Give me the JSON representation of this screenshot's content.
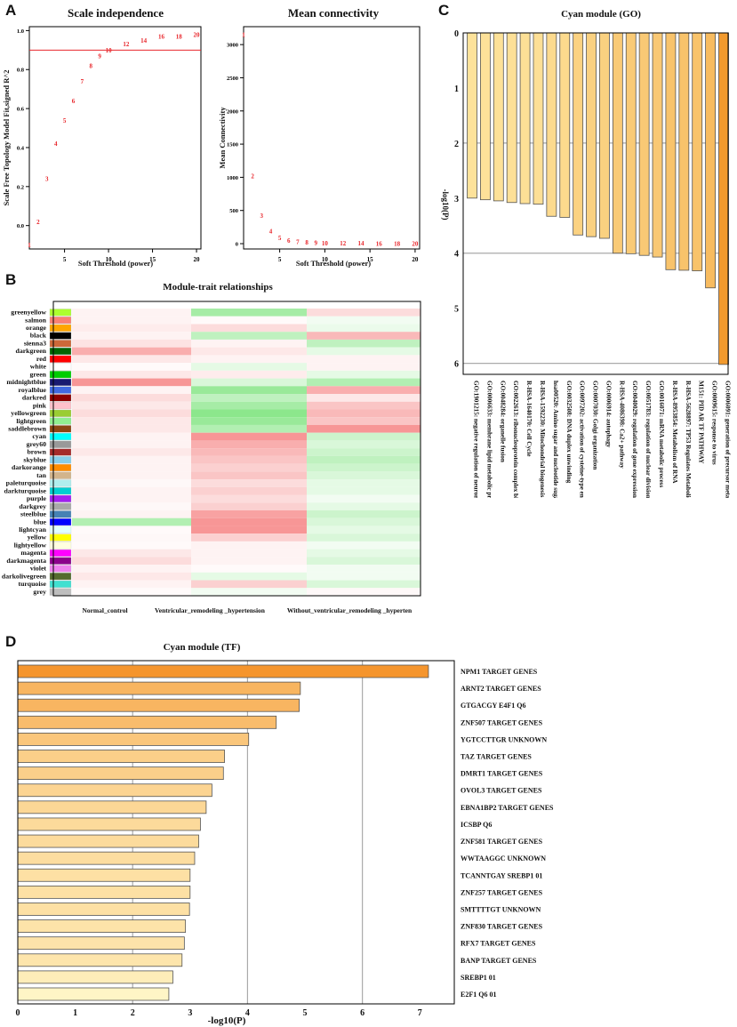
{
  "panel_labels": {
    "a": "A",
    "b": "B",
    "c": "C",
    "d": "D"
  },
  "chart_data": [
    {
      "id": "scale_independence",
      "type": "scatter",
      "title": "Scale independence",
      "xlabel": "Soft Threshold (power)",
      "ylabel": "Scale Free Topology Model Fit,signed R^2",
      "xlim": [
        1,
        20.5
      ],
      "ylim": [
        -0.12,
        1.02
      ],
      "xticks": [
        5,
        10,
        15,
        20
      ],
      "yticks": [
        0.0,
        0.2,
        0.4,
        0.6,
        0.8,
        1.0
      ],
      "cutoff_line": 0.9,
      "points": [
        {
          "x": 1,
          "y": -0.1
        },
        {
          "x": 2,
          "y": 0.02
        },
        {
          "x": 3,
          "y": 0.24
        },
        {
          "x": 4,
          "y": 0.42
        },
        {
          "x": 5,
          "y": 0.54
        },
        {
          "x": 6,
          "y": 0.64
        },
        {
          "x": 7,
          "y": 0.74
        },
        {
          "x": 8,
          "y": 0.82
        },
        {
          "x": 9,
          "y": 0.87
        },
        {
          "x": 10,
          "y": 0.9
        },
        {
          "x": 12,
          "y": 0.93
        },
        {
          "x": 14,
          "y": 0.95
        },
        {
          "x": 16,
          "y": 0.97
        },
        {
          "x": 18,
          "y": 0.97
        },
        {
          "x": 20,
          "y": 0.98
        }
      ]
    },
    {
      "id": "mean_connectivity",
      "type": "scatter",
      "title": "Mean connectivity",
      "xlabel": "Soft Threshold (power)",
      "ylabel": "Mean Connectivity",
      "xlim": [
        1,
        20.5
      ],
      "ylim": [
        -80,
        3270
      ],
      "xticks": [
        5,
        10,
        15,
        20
      ],
      "yticks": [
        0,
        500,
        1000,
        1500,
        2000,
        2500,
        3000
      ],
      "points": [
        {
          "x": 1,
          "y": 3150
        },
        {
          "x": 2,
          "y": 1020
        },
        {
          "x": 3,
          "y": 420
        },
        {
          "x": 4,
          "y": 190
        },
        {
          "x": 5,
          "y": 90
        },
        {
          "x": 6,
          "y": 50
        },
        {
          "x": 7,
          "y": 30
        },
        {
          "x": 8,
          "y": 20
        },
        {
          "x": 9,
          "y": 14
        },
        {
          "x": 10,
          "y": 10
        },
        {
          "x": 12,
          "y": 6
        },
        {
          "x": 14,
          "y": 4
        },
        {
          "x": 16,
          "y": 3
        },
        {
          "x": 18,
          "y": 2
        },
        {
          "x": 20,
          "y": 2
        }
      ]
    },
    {
      "id": "module_trait",
      "type": "heatmap",
      "title": "Module-trait relationships",
      "columns": [
        "Normal_control",
        "Ventricular_remodeling _hypertension",
        "Without_ventricular_remodeling _hyperten"
      ],
      "rows": [
        {
          "module": "greenyellow",
          "color": "#adff2f",
          "r": [
            0.05,
            -0.35,
            0.15
          ]
        },
        {
          "module": "salmon",
          "color": "#fa8072",
          "r": [
            0.05,
            0.02,
            -0.05
          ]
        },
        {
          "module": "orange",
          "color": "#ffa500",
          "r": [
            0.08,
            0.15,
            -0.08
          ]
        },
        {
          "module": "black",
          "color": "#000000",
          "r": [
            0.05,
            -0.25,
            0.3
          ]
        },
        {
          "module": "sienna3",
          "color": "#cd6839",
          "r": [
            0.12,
            0.05,
            -0.25
          ]
        },
        {
          "module": "darkgreen",
          "color": "#006400",
          "r": [
            0.35,
            0.1,
            -0.1
          ]
        },
        {
          "module": "red",
          "color": "#ff0000",
          "r": [
            0.1,
            0.05,
            0.05
          ]
        },
        {
          "module": "white",
          "color": "#ffffff",
          "r": [
            0.02,
            -0.1,
            0.05
          ]
        },
        {
          "module": "green",
          "color": "#00cc00",
          "r": [
            0.1,
            0.08,
            -0.1
          ]
        },
        {
          "module": "midnightblue",
          "color": "#191970",
          "r": [
            0.45,
            -0.15,
            -0.3
          ]
        },
        {
          "module": "royalblue",
          "color": "#4169e1",
          "r": [
            0.05,
            -0.4,
            0.35
          ]
        },
        {
          "module": "darkred",
          "color": "#8b0000",
          "r": [
            0.15,
            -0.25,
            0.1
          ]
        },
        {
          "module": "pink",
          "color": "#ffc0cb",
          "r": [
            0.1,
            -0.35,
            0.25
          ]
        },
        {
          "module": "yellowgreen",
          "color": "#9acd32",
          "r": [
            0.15,
            -0.45,
            0.3
          ]
        },
        {
          "module": "lightgreen",
          "color": "#90ee90",
          "r": [
            0.1,
            -0.4,
            0.25
          ]
        },
        {
          "module": "saddlebrown",
          "color": "#8b4513",
          "r": [
            0.1,
            -0.3,
            0.45
          ]
        },
        {
          "module": "cyan",
          "color": "#00ffff",
          "r": [
            0.05,
            0.45,
            -0.2
          ]
        },
        {
          "module": "grey60",
          "color": "#999999",
          "r": [
            0.05,
            0.35,
            -0.15
          ]
        },
        {
          "module": "brown",
          "color": "#a52a2a",
          "r": [
            0.1,
            0.3,
            -0.2
          ]
        },
        {
          "module": "skyblue",
          "color": "#87ceeb",
          "r": [
            0.05,
            0.25,
            -0.25
          ]
        },
        {
          "module": "darkorange",
          "color": "#ff8c00",
          "r": [
            0.05,
            0.2,
            -0.2
          ]
        },
        {
          "module": "tan",
          "color": "#d2b48c",
          "r": [
            0.05,
            0.25,
            -0.15
          ]
        },
        {
          "module": "paleturquoise",
          "color": "#afeeee",
          "r": [
            0.03,
            0.15,
            -0.1
          ]
        },
        {
          "module": "darkturquoise",
          "color": "#00ced1",
          "r": [
            0.05,
            0.2,
            -0.1
          ]
        },
        {
          "module": "purple",
          "color": "#a020f0",
          "r": [
            0.05,
            0.15,
            -0.05
          ]
        },
        {
          "module": "darkgrey",
          "color": "#a9a9a9",
          "r": [
            0.03,
            0.2,
            -0.1
          ]
        },
        {
          "module": "steelblue",
          "color": "#4682b4",
          "r": [
            0.05,
            0.4,
            -0.2
          ]
        },
        {
          "module": "blue",
          "color": "#0000ff",
          "r": [
            -0.3,
            0.45,
            -0.15
          ]
        },
        {
          "module": "lightcyan",
          "color": "#e0ffff",
          "r": [
            0.02,
            0.45,
            -0.1
          ]
        },
        {
          "module": "yellow",
          "color": "#ffff00",
          "r": [
            0.03,
            0.2,
            -0.15
          ]
        },
        {
          "module": "lightyellow",
          "color": "#ffffe0",
          "r": [
            0.02,
            0.05,
            -0.05
          ]
        },
        {
          "module": "magenta",
          "color": "#ff00ff",
          "r": [
            0.1,
            0.05,
            -0.1
          ]
        },
        {
          "module": "darkmagenta",
          "color": "#8b008b",
          "r": [
            0.15,
            0.05,
            -0.15
          ]
        },
        {
          "module": "violet",
          "color": "#ee82ee",
          "r": [
            0.05,
            0.02,
            -0.05
          ]
        },
        {
          "module": "darkolivegreen",
          "color": "#556b2f",
          "r": [
            0.1,
            -0.1,
            -0.05
          ]
        },
        {
          "module": "turquoise",
          "color": "#40e0d0",
          "r": [
            0.05,
            0.2,
            -0.15
          ]
        },
        {
          "module": "grey",
          "color": "#bebebe",
          "r": [
            0.02,
            -0.05,
            0.03
          ]
        }
      ]
    },
    {
      "id": "cyan_go",
      "type": "bar",
      "orientation": "vertical-inverted",
      "title": "Cyan module (GO)",
      "ylabel": "-log10(P)",
      "ylim": [
        0,
        6.2
      ],
      "yticks": [
        0,
        1,
        2,
        3,
        4,
        5,
        6
      ],
      "gridlines": [
        2,
        4,
        6
      ],
      "categories": [
        "GO:1901215: negative regulation of neuron death",
        "GO:0006633: membrane lipid metabolic process",
        "GO:0048284: organelle fusion",
        "GO:0022613: ribonucleoprotein complex biogenesis",
        "R-HSA-1640170: Cell Cycle",
        "R-HSA-1592230: Mitochondrial biogenesis",
        "hsa00520: Amino sugar and nucleotide sugar metabolism",
        "GO:0032508: DNA duplex unwinding",
        "GO:0097202: activation of cysteine-type endopeptidase activity",
        "GO:0007030: Golgi organization",
        "GO:0006914: autophagy",
        "R-HSA-4086398: Ca2+ pathway",
        "GO:0040029: regulation of gene expression, epigenetic",
        "GO:0051783: regulation of nuclear division",
        "GO:0016071: mRNA metabolic process",
        "R-HSA-8953854: Metabolism of RNA",
        "R-HSA-5628897: TP53 Regulates Metabolic Genes",
        "M151: PID AR TF PATHWAY",
        "GO:0009615: response to virus",
        "GO:0006091: generation of precursor metabolites and energy"
      ],
      "values": [
        3.0,
        3.03,
        3.05,
        3.08,
        3.1,
        3.11,
        3.33,
        3.35,
        3.67,
        3.7,
        3.73,
        4.0,
        4.01,
        4.04,
        4.07,
        4.3,
        4.31,
        4.32,
        4.63,
        6.02
      ]
    },
    {
      "id": "cyan_tf",
      "type": "bar",
      "orientation": "horizontal",
      "title": "Cyan module (TF)",
      "xlabel": "-log10(P)",
      "xlim": [
        0,
        7.6
      ],
      "xticks": [
        0,
        1,
        2,
        3,
        4,
        5,
        6,
        7
      ],
      "gridlines": [
        2,
        4,
        6
      ],
      "categories": [
        "NPM1 TARGET GENES",
        "ARNT2 TARGET GENES",
        "GTGACGY E4F1 Q6",
        "ZNF507 TARGET GENES",
        "YGTCCTTGR UNKNOWN",
        "TAZ TARGET GENES",
        "DMRT1 TARGET GENES",
        "OVOL3 TARGET GENES",
        "EBNA1BP2 TARGET GENES",
        "ICSBP Q6",
        "ZNF581 TARGET GENES",
        "WWTAAGGC UNKNOWN",
        "TCANNTGAY SREBP1 01",
        "ZNF257 TARGET GENES",
        "SMTTTTGT UNKNOWN",
        "ZNF830 TARGET GENES",
        "RFX7 TARGET GENES",
        "BANP TARGET GENES",
        "SREBP1 01",
        "E2F1 Q6 01"
      ],
      "values": [
        7.15,
        4.92,
        4.9,
        4.5,
        4.02,
        3.6,
        3.58,
        3.38,
        3.28,
        3.18,
        3.15,
        3.08,
        3.0,
        3.0,
        2.99,
        2.92,
        2.9,
        2.86,
        2.7,
        2.63
      ]
    }
  ]
}
